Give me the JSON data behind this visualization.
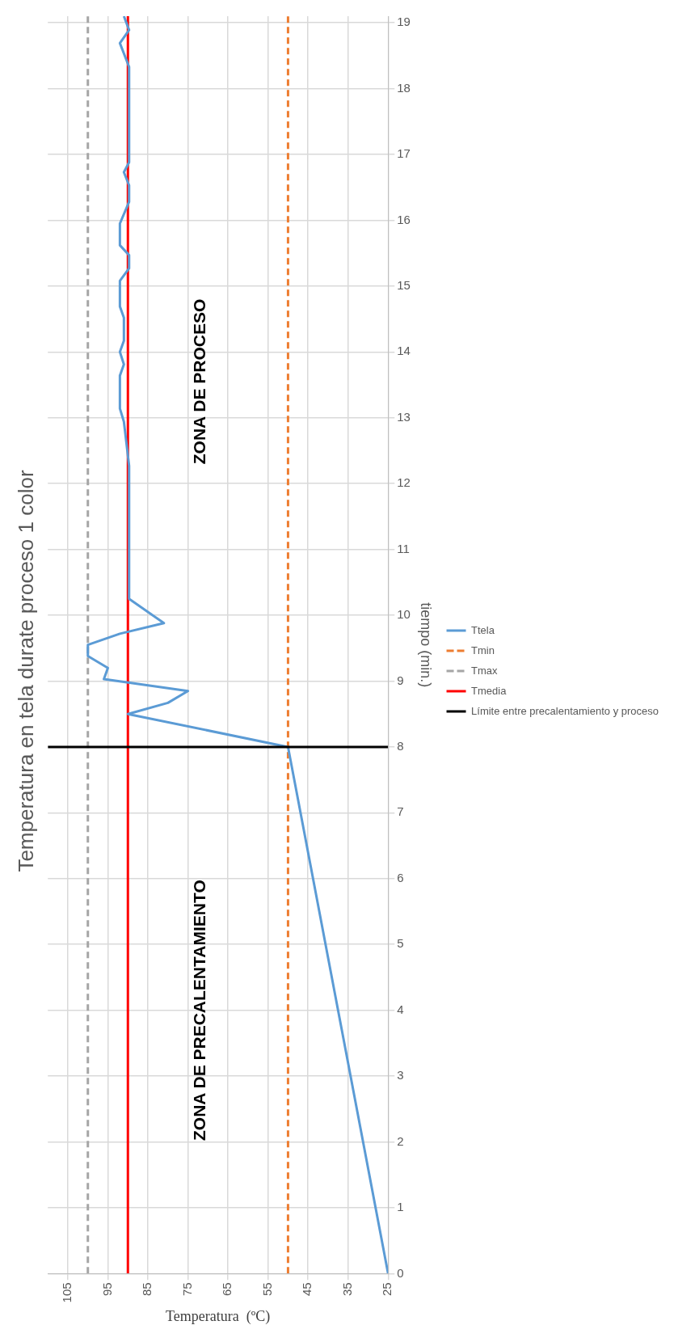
{
  "chart_data": {
    "type": "line",
    "title": "Temperatura en tela durate proceso 1 color",
    "xlabel": "Temperatura  (ºC)",
    "ylabel": "tiempo (min.)",
    "xlim": [
      110,
      25
    ],
    "xticks": [
      105,
      95,
      85,
      75,
      65,
      55,
      45,
      35,
      25
    ],
    "ylim": [
      0,
      19.1
    ],
    "yticks": [
      0,
      1,
      2,
      3,
      4,
      5,
      6,
      7,
      8,
      9,
      10,
      11,
      12,
      13,
      14,
      15,
      16,
      17,
      18,
      19
    ],
    "grid": true,
    "legend": "right",
    "marker": "none",
    "series": [
      {
        "name": "Ttela",
        "color": "#5b9bd5",
        "line_style": "solid",
        "x": [
          25,
          50,
          90,
          80,
          75,
          96,
          95,
          100,
          100,
          92,
          81,
          89.7,
          89.7,
          91,
          92,
          92,
          91,
          92,
          91,
          91,
          92,
          92,
          89.7,
          89.7,
          92,
          92,
          89.7,
          89.7,
          91,
          89.7,
          89.7,
          92,
          89.7,
          91
        ],
        "values": [
          0,
          8,
          8.5,
          8.67,
          8.85,
          9.03,
          9.2,
          9.38,
          9.55,
          9.72,
          9.88,
          10.25,
          12.27,
          12.94,
          13.14,
          13.64,
          13.81,
          14.0,
          14.17,
          14.52,
          14.69,
          15.08,
          15.27,
          15.47,
          15.62,
          15.95,
          16.28,
          16.53,
          16.73,
          16.88,
          18.33,
          18.69,
          18.89,
          19.1
        ]
      },
      {
        "name": "Tmin",
        "color": "#ed7d31",
        "line_style": "dashed",
        "x": [
          50,
          50
        ],
        "values": [
          0,
          19.1
        ]
      },
      {
        "name": "Tmax",
        "color": "#a5a5a5",
        "line_style": "dashed",
        "x": [
          100,
          100
        ],
        "values": [
          0,
          19.1
        ]
      },
      {
        "name": "Tmedia",
        "color": "#ff0000",
        "line_style": "solid",
        "x": [
          90,
          90
        ],
        "values": [
          0,
          19.1
        ]
      }
    ],
    "ref_lines": [
      {
        "axis": "y",
        "value": 8,
        "label": "Límite entre precalentamiento y proceso",
        "color": "#000000",
        "line_style": "solid"
      }
    ],
    "annotations": [
      "ZONA DE PRECALENTAMIENTO",
      "ZONA DE PROCESO"
    ]
  }
}
